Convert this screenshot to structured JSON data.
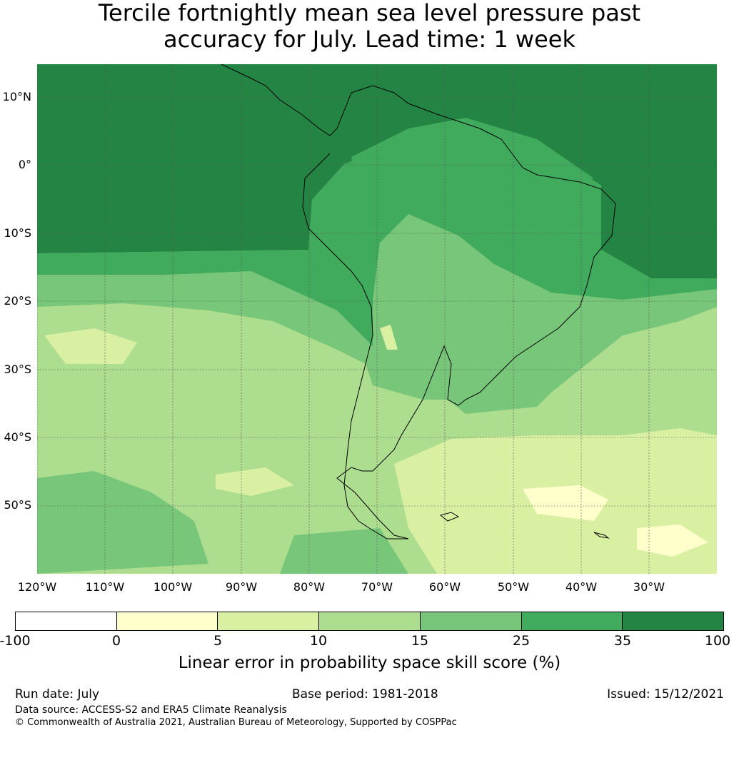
{
  "title": {
    "line1": "Tercile fortnightly mean sea level pressure past",
    "line2": "accuracy for July. Lead time: 1 week"
  },
  "lat_labels": [
    "10°N",
    "0°",
    "10°S",
    "20°S",
    "30°S",
    "40°S",
    "50°S"
  ],
  "lon_labels": [
    "120°W",
    "110°W",
    "100°W",
    "90°W",
    "80°W",
    "70°W",
    "60°W",
    "50°W",
    "40°W",
    "30°W"
  ],
  "colorbar": {
    "colors": [
      "#ffffff",
      "#ffffcc",
      "#d9f0a3",
      "#addd8e",
      "#78c679",
      "#41ab5d",
      "#238443"
    ],
    "tick_labels": [
      "-100",
      "0",
      "5",
      "10",
      "15",
      "25",
      "35",
      "100"
    ],
    "label": "Linear error in probability space skill score (%)"
  },
  "footer": {
    "run_date": "Run date: July",
    "base_period": "Base period: 1981-2018",
    "issued": "Issued: 15/12/2021",
    "data_source": "Data source: ACCESS-S2 and ERA5 Climate Reanalysis",
    "copyright": "© Commonwealth of Australia 2021, Australian Bureau of Meteorology, Supported by COSPPac"
  }
}
